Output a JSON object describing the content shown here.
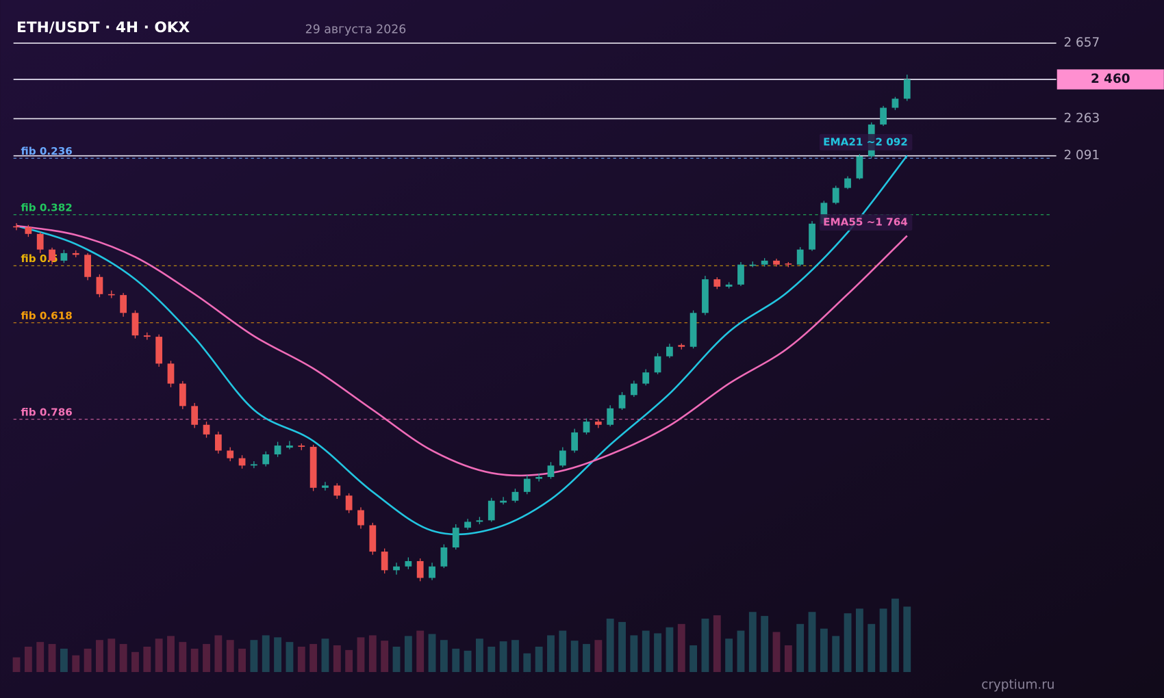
{
  "chart_data": {
    "type": "candlestick",
    "title": "ETH/USDT · 4H · OKX",
    "subtitle": "29 августа 2026",
    "watermark": "cryptium.ru",
    "log_scale": true,
    "ylim": [
      800,
      2800
    ],
    "yticks": [
      {
        "value": 2657,
        "label": "2 657"
      },
      {
        "value": 2263,
        "label": "2 263"
      },
      {
        "value": 2091,
        "label": "2 091"
      }
    ],
    "last_price": {
      "value": 2460,
      "label": "2 460",
      "color": "#ff8fd0"
    },
    "up_color": "#26a69a",
    "down_color": "#ef5350",
    "candles": {
      "open": [
        1800,
        1796,
        1771,
        1713,
        1673,
        1700,
        1694,
        1616,
        1558,
        1555,
        1497,
        1427,
        1423,
        1344,
        1288,
        1228,
        1180,
        1156,
        1117,
        1099,
        1082,
        1085,
        1108,
        1124,
        1129,
        1126,
        1032,
        1037,
        1015,
        984,
        953,
        901,
        866,
        873,
        883,
        852,
        873,
        909,
        948,
        960,
        963,
        1000,
        1004,
        1023,
        1052,
        1056,
        1082,
        1117,
        1161,
        1188,
        1180,
        1222,
        1257,
        1288,
        1319,
        1365,
        1398,
        1393,
        1497,
        1608,
        1583,
        1590,
        1655,
        1659,
        1673,
        1663,
        1659,
        1713,
        1810,
        1892,
        1953,
        1993,
        2089,
        2235,
        2316,
        2361
      ],
      "high": [
        1812,
        1805,
        1778,
        1720,
        1712,
        1710,
        1700,
        1625,
        1570,
        1562,
        1505,
        1436,
        1430,
        1352,
        1295,
        1236,
        1188,
        1163,
        1125,
        1106,
        1092,
        1115,
        1138,
        1140,
        1134,
        1131,
        1045,
        1042,
        1020,
        990,
        958,
        907,
        880,
        890,
        888,
        880,
        915,
        955,
        966,
        970,
        1010,
        1012,
        1030,
        1060,
        1064,
        1090,
        1125,
        1170,
        1196,
        1194,
        1230,
        1265,
        1296,
        1328,
        1374,
        1402,
        1403,
        1505,
        1620,
        1615,
        1598,
        1668,
        1670,
        1682,
        1680,
        1668,
        1722,
        1820,
        1900,
        1962,
        2002,
        2098,
        2245,
        2325,
        2370,
        2485
      ],
      "low": [
        1785,
        1760,
        1700,
        1660,
        1665,
        1685,
        1605,
        1548,
        1545,
        1485,
        1418,
        1414,
        1335,
        1278,
        1220,
        1172,
        1148,
        1110,
        1092,
        1075,
        1076,
        1080,
        1102,
        1120,
        1118,
        1025,
        1026,
        1008,
        978,
        946,
        895,
        860,
        858,
        868,
        846,
        848,
        870,
        905,
        944,
        955,
        960,
        996,
        1000,
        1018,
        1046,
        1052,
        1078,
        1112,
        1156,
        1172,
        1176,
        1218,
        1252,
        1283,
        1314,
        1360,
        1385,
        1388,
        1490,
        1575,
        1577,
        1585,
        1650,
        1652,
        1652,
        1650,
        1654,
        1708,
        1805,
        1886,
        1948,
        1988,
        2082,
        2228,
        2305,
        2350
      ],
      "close": [
        1796,
        1771,
        1713,
        1673,
        1700,
        1694,
        1616,
        1558,
        1555,
        1497,
        1427,
        1423,
        1344,
        1288,
        1228,
        1180,
        1156,
        1117,
        1099,
        1082,
        1085,
        1108,
        1129,
        1129,
        1126,
        1032,
        1037,
        1015,
        984,
        953,
        901,
        866,
        873,
        883,
        852,
        873,
        909,
        948,
        960,
        963,
        1004,
        1004,
        1023,
        1052,
        1056,
        1082,
        1117,
        1161,
        1188,
        1180,
        1222,
        1257,
        1288,
        1319,
        1365,
        1393,
        1393,
        1497,
        1608,
        1583,
        1590,
        1659,
        1659,
        1673,
        1659,
        1659,
        1713,
        1810,
        1892,
        1953,
        1993,
        2089,
        2235,
        2316,
        2361,
        2460
      ],
      "volume": [
        22,
        38,
        45,
        42,
        35,
        25,
        35,
        48,
        50,
        42,
        30,
        38,
        50,
        54,
        45,
        35,
        42,
        55,
        48,
        35,
        48,
        55,
        52,
        45,
        38,
        42,
        50,
        40,
        33,
        52,
        55,
        47,
        38,
        54,
        62,
        57,
        48,
        35,
        32,
        50,
        38,
        46,
        48,
        28,
        38,
        55,
        62,
        47,
        42,
        48,
        80,
        75,
        55,
        62,
        58,
        67,
        72,
        40,
        80,
        85,
        50,
        62,
        90,
        84,
        60,
        40,
        72,
        90,
        65,
        54,
        88,
        95,
        72,
        95,
        110,
        98
      ]
    },
    "ema": [
      {
        "label": "EMA21 ~2 092",
        "color": "#22c5e0",
        "x": [
          0,
          5,
          10,
          15,
          20,
          25,
          30,
          35,
          40,
          45,
          50,
          55,
          60,
          65,
          70,
          75
        ],
        "values": [
          1802,
          1733,
          1608,
          1420,
          1218,
          1140,
          1023,
          942,
          945,
          1007,
          1131,
          1261,
          1438,
          1567,
          1777,
          2092
        ]
      },
      {
        "label": "EMA55 ~1 764",
        "color": "#f06bb8",
        "x": [
          0,
          5,
          10,
          15,
          20,
          25,
          30,
          35,
          40,
          45,
          50,
          55,
          60,
          65,
          70,
          75
        ],
        "values": [
          1802,
          1767,
          1686,
          1558,
          1425,
          1330,
          1218,
          1117,
          1065,
          1065,
          1108,
          1178,
          1288,
          1390,
          1558,
          1764
        ]
      }
    ],
    "fib": [
      {
        "label": "fib 0.236",
        "value": 2080,
        "color": "#6aa8ff"
      },
      {
        "label": "fib 0.382",
        "value": 1845,
        "color": "#22c55e"
      },
      {
        "label": "fib 0.5",
        "value": 1655,
        "color": "#eab308"
      },
      {
        "label": "fib 0.618",
        "value": 1466,
        "color": "#f59e0b"
      },
      {
        "label": "fib 0.786",
        "value": 1194,
        "color": "#f472b6"
      }
    ]
  }
}
